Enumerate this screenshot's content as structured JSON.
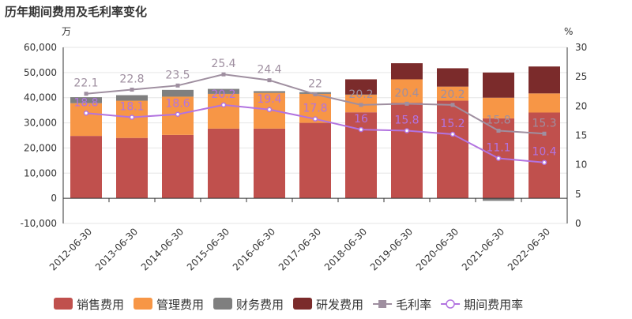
{
  "chart_data": {
    "type": "bar",
    "title": "历年期间费用及毛利率变化",
    "left_unit": "万",
    "right_unit": "%",
    "categories": [
      "2012-06-30",
      "2013-06-30",
      "2014-06-30",
      "2015-06-30",
      "2016-06-30",
      "2017-06-30",
      "2018-06-30",
      "2019-06-30",
      "2020-06-30",
      "2021-06-30",
      "2022-06-30"
    ],
    "left_axis": {
      "min": -10000,
      "max": 60000,
      "ticks": [
        -10000,
        0,
        10000,
        20000,
        30000,
        40000,
        50000,
        60000
      ],
      "tick_labels": [
        "-10,000",
        "0",
        "10,000",
        "20,000",
        "30,000",
        "40,000",
        "50,000",
        "60,000"
      ]
    },
    "right_axis": {
      "min": 0,
      "max": 30,
      "ticks": [
        0,
        5,
        10,
        15,
        20,
        25,
        30
      ],
      "tick_labels": [
        "0",
        "5",
        "10",
        "15",
        "20",
        "25",
        "30"
      ]
    },
    "series": [
      {
        "name": "销售费用",
        "kind": "bar",
        "color": "#c0504d",
        "values": [
          24800,
          24000,
          25200,
          27700,
          27700,
          30000,
          34200,
          38000,
          38800,
          31800,
          34100
        ]
      },
      {
        "name": "管理费用",
        "kind": "bar",
        "color": "#f79646",
        "values": [
          13000,
          14800,
          15200,
          13800,
          14200,
          11500,
          7000,
          9300,
          5600,
          8200,
          7600
        ]
      },
      {
        "name": "财务费用",
        "kind": "bar",
        "color": "#7f7f7f",
        "values": [
          2400,
          2200,
          2700,
          2000,
          700,
          700,
          100,
          0,
          0,
          -1000,
          0
        ]
      },
      {
        "name": "研发费用",
        "kind": "bar",
        "color": "#7b2b2b",
        "values": [
          0,
          0,
          0,
          0,
          0,
          0,
          6000,
          6400,
          7300,
          10000,
          10700
        ]
      },
      {
        "name": "毛利率",
        "kind": "line",
        "color": "#9f8fa0",
        "marker": "square",
        "values": [
          22.1,
          22.8,
          23.5,
          25.4,
          24.4,
          22.0,
          20.2,
          20.4,
          20.2,
          15.8,
          15.3
        ],
        "labels": [
          "22.1",
          "22.8",
          "23.5",
          "25.4",
          "24.4",
          "22",
          "20.2",
          "20.4",
          "20.2",
          "15.8",
          "15.3"
        ]
      },
      {
        "name": "期间费用率",
        "kind": "line",
        "color": "#b273e0",
        "marker": "circle",
        "values": [
          18.8,
          18.1,
          18.6,
          20.2,
          19.4,
          17.8,
          16.0,
          15.8,
          15.2,
          11.1,
          10.4
        ],
        "labels": [
          "18.8",
          "18.1",
          "18.6",
          "20.2",
          "19.4",
          "17.8",
          "16",
          "15.8",
          "15.2",
          "11.1",
          "10.4"
        ]
      }
    ]
  }
}
